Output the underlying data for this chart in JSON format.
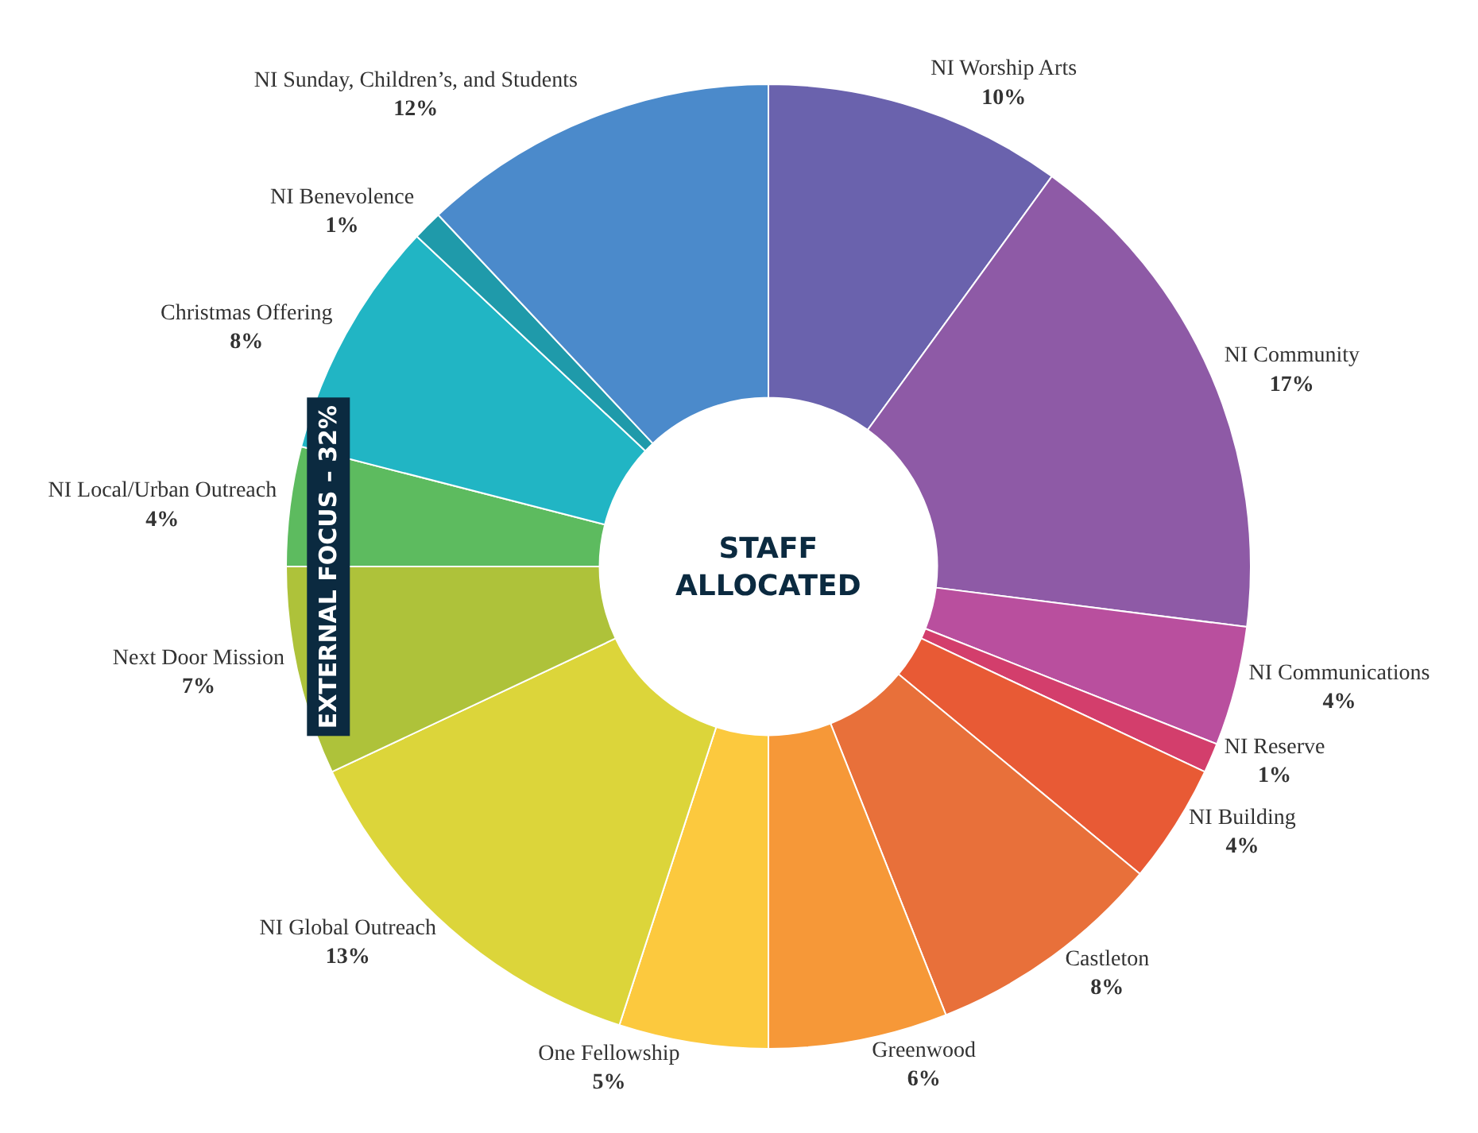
{
  "chart_data": {
    "type": "donut",
    "categories": [
      "NI Worship Arts",
      "NI Community",
      "NI Communications",
      "NI Reserve",
      "NI Building",
      "Castleton",
      "Greenwood",
      "One Fellowship",
      "NI Global Outreach",
      "Next Door Mission",
      "NI Local/Urban Outreach",
      "Christmas Offering",
      "NI Benevolence",
      "NI Sunday, Children’s, and Students"
    ],
    "values": [
      10,
      17,
      4,
      1,
      4,
      8,
      6,
      5,
      13,
      7,
      4,
      8,
      1,
      12
    ],
    "value_labels": [
      "10%",
      "17%",
      "4%",
      "1%",
      "4%",
      "8%",
      "6%",
      "5%",
      "13%",
      "7%",
      "4%",
      "8%",
      "1%",
      "12%"
    ],
    "colors": [
      "#6a62ad",
      "#8e5aa6",
      "#b94f9e",
      "#d33e6c",
      "#e85a35",
      "#e8703a",
      "#f69838",
      "#fcc93e",
      "#dcd53a",
      "#aec23a",
      "#5dbb5f",
      "#21b5c4",
      "#1f9aaa",
      "#4b8acb"
    ],
    "annotations": [
      "STAFF ALLOCATED",
      "EXTERNAL FOCUS – 32%"
    ],
    "legend": false
  }
}
